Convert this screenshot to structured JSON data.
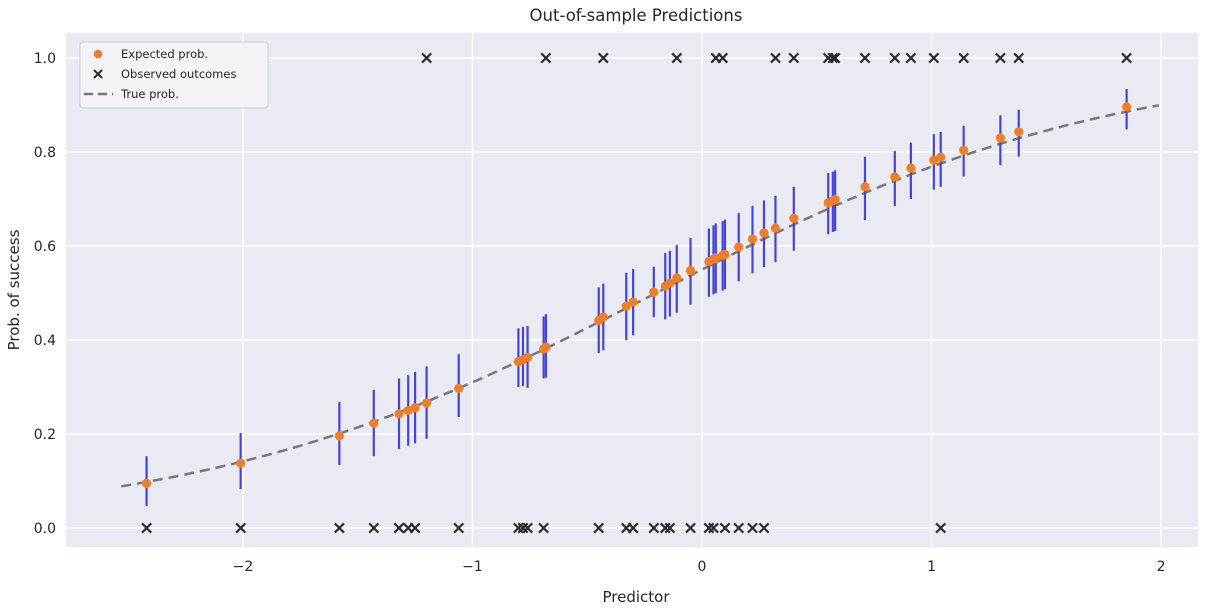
{
  "chart_data": {
    "type": "scatter",
    "title": "Out-of-sample Predictions",
    "xlabel": "Predictor",
    "ylabel": "Prob. of success",
    "xlim": [
      -2.771,
      2.161
    ],
    "ylim": [
      -0.0404,
      1.0532
    ],
    "grid": true,
    "xticks": {
      "values": [
        -2,
        -1,
        0,
        1,
        2
      ],
      "labels": [
        "−2",
        "−1",
        "0",
        "1",
        "2"
      ]
    },
    "yticks": {
      "values": [
        0.0,
        0.2,
        0.4,
        0.6,
        0.8,
        1.0
      ],
      "labels": [
        "0.0",
        "0.2",
        "0.4",
        "0.6",
        "0.8",
        "1.0"
      ]
    },
    "legend": {
      "position": "upper left",
      "entries": [
        {
          "label": "Expected prob.",
          "marker": "dot"
        },
        {
          "label": "Observed outcomes",
          "marker": "x"
        },
        {
          "label": "True prob.",
          "marker": "dashed-line"
        }
      ]
    },
    "true_prob": {
      "model": "logistic",
      "intercept": 0.2,
      "slope": 1.0,
      "x_range": [
        -2.53,
        1.99
      ]
    },
    "series": [
      {
        "name": "Expected prob. with error bars; y = observed outcome",
        "points": [
          {
            "x": -2.42,
            "p": 0.095,
            "lo": 0.047,
            "hi": 0.153,
            "y": 0
          },
          {
            "x": -2.01,
            "p": 0.138,
            "lo": 0.083,
            "hi": 0.202,
            "y": 0
          },
          {
            "x": -1.58,
            "p": 0.196,
            "lo": 0.134,
            "hi": 0.268,
            "y": 0
          },
          {
            "x": -1.43,
            "p": 0.223,
            "lo": 0.153,
            "hi": 0.294,
            "y": 0
          },
          {
            "x": -1.32,
            "p": 0.243,
            "lo": 0.168,
            "hi": 0.318,
            "y": 0
          },
          {
            "x": -1.28,
            "p": 0.25,
            "lo": 0.175,
            "hi": 0.325,
            "y": 0
          },
          {
            "x": -1.25,
            "p": 0.256,
            "lo": 0.18,
            "hi": 0.332,
            "y": 0
          },
          {
            "x": -1.2,
            "p": 0.266,
            "lo": 0.19,
            "hi": 0.344,
            "y": 1
          },
          {
            "x": -1.06,
            "p": 0.297,
            "lo": 0.236,
            "hi": 0.37,
            "y": 0
          },
          {
            "x": -0.8,
            "p": 0.354,
            "lo": 0.3,
            "hi": 0.425,
            "y": 0
          },
          {
            "x": -0.78,
            "p": 0.358,
            "lo": 0.302,
            "hi": 0.428,
            "y": 0
          },
          {
            "x": -0.76,
            "p": 0.363,
            "lo": 0.298,
            "hi": 0.43,
            "y": 0
          },
          {
            "x": -0.69,
            "p": 0.381,
            "lo": 0.318,
            "hi": 0.45,
            "y": 0
          },
          {
            "x": -0.68,
            "p": 0.385,
            "lo": 0.32,
            "hi": 0.455,
            "y": 1
          },
          {
            "x": -0.45,
            "p": 0.442,
            "lo": 0.372,
            "hi": 0.512,
            "y": 0
          },
          {
            "x": -0.43,
            "p": 0.449,
            "lo": 0.378,
            "hi": 0.52,
            "y": 1
          },
          {
            "x": -0.33,
            "p": 0.472,
            "lo": 0.4,
            "hi": 0.543,
            "y": 0
          },
          {
            "x": -0.3,
            "p": 0.481,
            "lo": 0.41,
            "hi": 0.551,
            "y": 0
          },
          {
            "x": -0.21,
            "p": 0.502,
            "lo": 0.449,
            "hi": 0.556,
            "y": 0
          },
          {
            "x": -0.16,
            "p": 0.515,
            "lo": 0.444,
            "hi": 0.585,
            "y": 0
          },
          {
            "x": -0.14,
            "p": 0.521,
            "lo": 0.45,
            "hi": 0.59,
            "y": 0
          },
          {
            "x": -0.11,
            "p": 0.532,
            "lo": 0.458,
            "hi": 0.602,
            "y": 1
          },
          {
            "x": -0.05,
            "p": 0.548,
            "lo": 0.475,
            "hi": 0.617,
            "y": 0
          },
          {
            "x": 0.03,
            "p": 0.567,
            "lo": 0.492,
            "hi": 0.637,
            "y": 0
          },
          {
            "x": 0.05,
            "p": 0.572,
            "lo": 0.497,
            "hi": 0.644,
            "y": 0
          },
          {
            "x": 0.06,
            "p": 0.575,
            "lo": 0.5,
            "hi": 0.648,
            "y": 1
          },
          {
            "x": 0.09,
            "p": 0.58,
            "lo": 0.505,
            "hi": 0.653,
            "y": 1
          },
          {
            "x": 0.1,
            "p": 0.582,
            "lo": 0.508,
            "hi": 0.656,
            "y": 0
          },
          {
            "x": 0.16,
            "p": 0.598,
            "lo": 0.525,
            "hi": 0.67,
            "y": 0
          },
          {
            "x": 0.22,
            "p": 0.615,
            "lo": 0.542,
            "hi": 0.685,
            "y": 0
          },
          {
            "x": 0.27,
            "p": 0.628,
            "lo": 0.555,
            "hi": 0.697,
            "y": 0
          },
          {
            "x": 0.32,
            "p": 0.638,
            "lo": 0.566,
            "hi": 0.707,
            "y": 1
          },
          {
            "x": 0.4,
            "p": 0.659,
            "lo": 0.59,
            "hi": 0.726,
            "y": 1
          },
          {
            "x": 0.55,
            "p": 0.692,
            "lo": 0.625,
            "hi": 0.755,
            "y": 1
          },
          {
            "x": 0.57,
            "p": 0.696,
            "lo": 0.63,
            "hi": 0.758,
            "y": 1
          },
          {
            "x": 0.58,
            "p": 0.699,
            "lo": 0.632,
            "hi": 0.761,
            "y": 1
          },
          {
            "x": 0.71,
            "p": 0.726,
            "lo": 0.655,
            "hi": 0.79,
            "y": 1
          },
          {
            "x": 0.84,
            "p": 0.747,
            "lo": 0.685,
            "hi": 0.802,
            "y": 1
          },
          {
            "x": 0.91,
            "p": 0.766,
            "lo": 0.7,
            "hi": 0.82,
            "y": 1
          },
          {
            "x": 1.01,
            "p": 0.783,
            "lo": 0.72,
            "hi": 0.838,
            "y": 1
          },
          {
            "x": 1.04,
            "p": 0.789,
            "lo": 0.726,
            "hi": 0.843,
            "y": 0
          },
          {
            "x": 1.14,
            "p": 0.804,
            "lo": 0.748,
            "hi": 0.856,
            "y": 1
          },
          {
            "x": 1.3,
            "p": 0.83,
            "lo": 0.772,
            "hi": 0.878,
            "y": 1
          },
          {
            "x": 1.38,
            "p": 0.843,
            "lo": 0.79,
            "hi": 0.89,
            "y": 1
          },
          {
            "x": 1.85,
            "p": 0.896,
            "lo": 0.848,
            "hi": 0.934,
            "y": 1
          }
        ]
      }
    ],
    "colors": {
      "background": "#ffffff",
      "panel": "#eaeaf2",
      "grid": "#ffffff",
      "expected": "#f07e26",
      "errorbar": "#4346d2",
      "observed": "#2a2a2a",
      "true_line": "#76777d",
      "legend_bg": "#f4f4f8",
      "legend_border": "#ccccd4",
      "text": "#262626"
    }
  }
}
